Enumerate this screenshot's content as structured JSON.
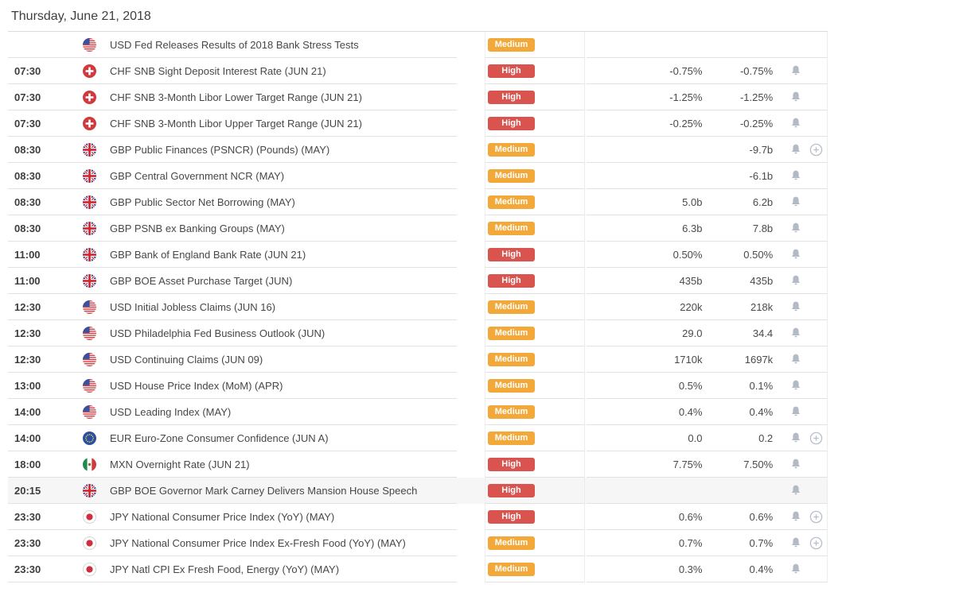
{
  "page": {
    "date_header": "Thursday, June 21, 2018"
  },
  "colors": {
    "importance_high": "#d9534f",
    "importance_medium": "#f3a83a",
    "bell_icon": "#b3bac6",
    "expand_icon": "#b9bfc9",
    "row_border": "#e2e2e2",
    "highlighted_row_bg": "#f6f6f6"
  },
  "columns": {
    "time": "time",
    "flag": "flag",
    "event": "event",
    "importance": "importance",
    "forecast": "forecast",
    "previous": "previous"
  },
  "table": {
    "rows": [
      {
        "time": "",
        "flag": "us-flag-icon",
        "event": "USD Fed Releases Results of 2018 Bank Stress Tests",
        "importance": "Medium",
        "forecast": "",
        "previous": "",
        "bell": false,
        "expand": false,
        "highlighted": false
      },
      {
        "time": "07:30",
        "flag": "ch-flag-icon",
        "event": "CHF SNB Sight Deposit Interest Rate (JUN 21)",
        "importance": "High",
        "forecast": "-0.75%",
        "previous": "-0.75%",
        "bell": true,
        "expand": false,
        "highlighted": false
      },
      {
        "time": "07:30",
        "flag": "ch-flag-icon",
        "event": "CHF SNB 3-Month Libor Lower Target Range (JUN 21)",
        "importance": "High",
        "forecast": "-1.25%",
        "previous": "-1.25%",
        "bell": true,
        "expand": false,
        "highlighted": false
      },
      {
        "time": "07:30",
        "flag": "ch-flag-icon",
        "event": "CHF SNB 3-Month Libor Upper Target Range (JUN 21)",
        "importance": "High",
        "forecast": "-0.25%",
        "previous": "-0.25%",
        "bell": true,
        "expand": false,
        "highlighted": false
      },
      {
        "time": "08:30",
        "flag": "gb-flag-icon",
        "event": "GBP Public Finances (PSNCR) (Pounds) (MAY)",
        "importance": "Medium",
        "forecast": "",
        "previous": "-9.7b",
        "bell": true,
        "expand": true,
        "highlighted": false
      },
      {
        "time": "08:30",
        "flag": "gb-flag-icon",
        "event": "GBP Central Government NCR (MAY)",
        "importance": "Medium",
        "forecast": "",
        "previous": "-6.1b",
        "bell": true,
        "expand": false,
        "highlighted": false
      },
      {
        "time": "08:30",
        "flag": "gb-flag-icon",
        "event": "GBP Public Sector Net Borrowing (MAY)",
        "importance": "Medium",
        "forecast": "5.0b",
        "previous": "6.2b",
        "bell": true,
        "expand": false,
        "highlighted": false
      },
      {
        "time": "08:30",
        "flag": "gb-flag-icon",
        "event": "GBP PSNB ex Banking Groups (MAY)",
        "importance": "Medium",
        "forecast": "6.3b",
        "previous": "7.8b",
        "bell": true,
        "expand": false,
        "highlighted": false
      },
      {
        "time": "11:00",
        "flag": "gb-flag-icon",
        "event": "GBP Bank of England Bank Rate (JUN 21)",
        "importance": "High",
        "forecast": "0.50%",
        "previous": "0.50%",
        "bell": true,
        "expand": false,
        "highlighted": false
      },
      {
        "time": "11:00",
        "flag": "gb-flag-icon",
        "event": "GBP BOE Asset Purchase Target (JUN)",
        "importance": "High",
        "forecast": "435b",
        "previous": "435b",
        "bell": true,
        "expand": false,
        "highlighted": false
      },
      {
        "time": "12:30",
        "flag": "us-flag-icon",
        "event": "USD Initial Jobless Claims (JUN 16)",
        "importance": "Medium",
        "forecast": "220k",
        "previous": "218k",
        "bell": true,
        "expand": false,
        "highlighted": false
      },
      {
        "time": "12:30",
        "flag": "us-flag-icon",
        "event": "USD Philadelphia Fed Business Outlook (JUN)",
        "importance": "Medium",
        "forecast": "29.0",
        "previous": "34.4",
        "bell": true,
        "expand": false,
        "highlighted": false
      },
      {
        "time": "12:30",
        "flag": "us-flag-icon",
        "event": "USD Continuing Claims (JUN 09)",
        "importance": "Medium",
        "forecast": "1710k",
        "previous": "1697k",
        "bell": true,
        "expand": false,
        "highlighted": false
      },
      {
        "time": "13:00",
        "flag": "us-flag-icon",
        "event": "USD House Price Index (MoM) (APR)",
        "importance": "Medium",
        "forecast": "0.5%",
        "previous": "0.1%",
        "bell": true,
        "expand": false,
        "highlighted": false
      },
      {
        "time": "14:00",
        "flag": "us-flag-icon",
        "event": "USD Leading Index (MAY)",
        "importance": "Medium",
        "forecast": "0.4%",
        "previous": "0.4%",
        "bell": true,
        "expand": false,
        "highlighted": false
      },
      {
        "time": "14:00",
        "flag": "eu-flag-icon",
        "event": "EUR Euro-Zone Consumer Confidence (JUN A)",
        "importance": "Medium",
        "forecast": "0.0",
        "previous": "0.2",
        "bell": true,
        "expand": true,
        "highlighted": false
      },
      {
        "time": "18:00",
        "flag": "mx-flag-icon",
        "event": "MXN Overnight Rate (JUN 21)",
        "importance": "High",
        "forecast": "7.75%",
        "previous": "7.50%",
        "bell": true,
        "expand": false,
        "highlighted": false
      },
      {
        "time": "20:15",
        "flag": "gb-flag-icon",
        "event": "GBP BOE Governor Mark Carney Delivers Mansion House Speech",
        "importance": "High",
        "forecast": "",
        "previous": "",
        "bell": true,
        "expand": false,
        "highlighted": true
      },
      {
        "time": "23:30",
        "flag": "jp-flag-icon",
        "event": "JPY National Consumer Price Index (YoY) (MAY)",
        "importance": "High",
        "forecast": "0.6%",
        "previous": "0.6%",
        "bell": true,
        "expand": true,
        "highlighted": false
      },
      {
        "time": "23:30",
        "flag": "jp-flag-icon",
        "event": "JPY National Consumer Price Index Ex-Fresh Food (YoY) (MAY)",
        "importance": "Medium",
        "forecast": "0.7%",
        "previous": "0.7%",
        "bell": true,
        "expand": true,
        "highlighted": false
      },
      {
        "time": "23:30",
        "flag": "jp-flag-icon",
        "event": "JPY Natl CPI Ex Fresh Food, Energy (YoY) (MAY)",
        "importance": "Medium",
        "forecast": "0.3%",
        "previous": "0.4%",
        "bell": true,
        "expand": false,
        "highlighted": false
      }
    ]
  }
}
